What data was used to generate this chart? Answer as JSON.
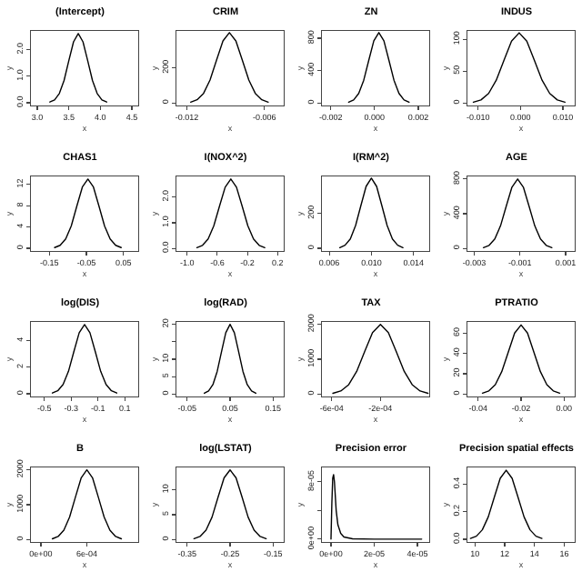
{
  "chart_data": [
    {
      "type": "line",
      "title": "(Intercept)",
      "xlabel": "x",
      "ylabel": "y",
      "color": "#000000",
      "x": [
        3.2,
        3.275,
        3.35,
        3.425,
        3.5,
        3.575,
        3.65,
        3.725,
        3.8,
        3.875,
        3.95,
        4.025,
        4.1
      ],
      "values": [
        0.03,
        0.11,
        0.35,
        0.84,
        1.58,
        2.29,
        2.6,
        2.29,
        1.58,
        0.84,
        0.35,
        0.11,
        0.03
      ],
      "xlim": [
        2.9,
        4.6
      ],
      "xticks": [
        {
          "value": 3,
          "label": "3.0"
        },
        {
          "value": 3.5,
          "label": "3.5"
        },
        {
          "value": 4,
          "label": "4.0"
        },
        {
          "value": 4.5,
          "label": "4.5"
        }
      ],
      "ylim": [
        -0.1,
        2.7
      ],
      "yticks": [
        {
          "value": 0,
          "label": "0.0"
        },
        {
          "value": 1,
          "label": "1.0"
        },
        {
          "value": 2,
          "label": "2.0"
        }
      ]
    },
    {
      "type": "line",
      "title": "CRIM",
      "xlabel": "x",
      "ylabel": "y",
      "color": "#000000",
      "x": [
        -0.0117,
        -0.0112,
        -0.0107,
        -0.0102,
        -0.0097,
        -0.0092,
        -0.0087,
        -0.0082,
        -0.0077,
        -0.0072,
        -0.0067,
        -0.0062,
        -0.0057
      ],
      "values": [
        4,
        18,
        54,
        130,
        243,
        353,
        400,
        353,
        243,
        130,
        54,
        18,
        4
      ],
      "xlim": [
        -0.0128,
        -0.0045
      ],
      "xticks": [
        -0.012,
        -0.006
      ],
      "ylim": [
        -15,
        410
      ],
      "yticks": [
        0,
        200
      ]
    },
    {
      "type": "line",
      "title": "ZN",
      "xlabel": "x",
      "ylabel": "y",
      "color": "#000000",
      "x": [
        -0.00118,
        -0.00095,
        -0.00072,
        -0.00049,
        -0.00026,
        -3e-05,
        0.0002,
        0.00043,
        0.00066,
        0.00089,
        0.00112,
        0.00135,
        0.00158
      ],
      "values": [
        10,
        38,
        118,
        282,
        528,
        768,
        870,
        768,
        528,
        282,
        118,
        38,
        10
      ],
      "xlim": [
        -0.0024,
        0.0025
      ],
      "xticks": [
        -0.002,
        {
          "value": 0,
          "label": "0.000"
        },
        0.002
      ],
      "ylim": [
        -30,
        890
      ],
      "yticks": [
        0,
        400,
        800
      ]
    },
    {
      "type": "line",
      "title": "INDUS",
      "xlabel": "x",
      "ylabel": "y",
      "color": "#000000",
      "x": [
        -0.0111,
        -0.0093,
        -0.0075,
        -0.0057,
        -0.0039,
        -0.0021,
        -0.0003,
        0.0015,
        0.0033,
        0.0051,
        0.0069,
        0.0087,
        0.0105
      ],
      "values": [
        1.2,
        4.8,
        14.9,
        35.7,
        66.7,
        97,
        110,
        97,
        66.7,
        35.7,
        14.9,
        4.8,
        1.2
      ],
      "xlim": [
        -0.0125,
        0.0128
      ],
      "xticks": [
        {
          "value": -0.01,
          "label": "-0.010"
        },
        {
          "value": 0,
          "label": "0.000"
        },
        {
          "value": 0.01,
          "label": "0.010"
        }
      ],
      "ylim": [
        -4,
        113
      ],
      "yticks": [
        0,
        50,
        100
      ]
    },
    {
      "type": "line",
      "title": "CHAS1",
      "xlabel": "x",
      "ylabel": "y",
      "color": "#000000",
      "x": [
        -0.136,
        -0.121,
        -0.106,
        -0.091,
        -0.076,
        -0.061,
        -0.046,
        -0.031,
        -0.016,
        -0.001,
        0.014,
        0.029,
        0.044
      ],
      "values": [
        0.14,
        0.57,
        1.76,
        4.2,
        7.9,
        11.5,
        13,
        11.5,
        7.9,
        4.2,
        1.76,
        0.57,
        0.14
      ],
      "xlim": [
        -0.2,
        0.09
      ],
      "xticks": [
        -0.15,
        -0.05,
        0.05
      ],
      "ylim": [
        -0.5,
        13.5
      ],
      "yticks": [
        0,
        4,
        8,
        12
      ]
    },
    {
      "type": "line",
      "title": "I(NOX^2)",
      "xlabel": "x",
      "ylabel": "y",
      "color": "#000000",
      "x": [
        -0.87,
        -0.795,
        -0.72,
        -0.645,
        -0.57,
        -0.495,
        -0.42,
        -0.345,
        -0.27,
        -0.195,
        -0.12,
        -0.045,
        0.03
      ],
      "values": [
        0.03,
        0.12,
        0.37,
        0.88,
        1.64,
        2.38,
        2.7,
        2.38,
        1.64,
        0.88,
        0.37,
        0.12,
        0.03
      ],
      "xlim": [
        -1.14,
        0.28
      ],
      "xticks": [
        {
          "value": -1,
          "label": "-1.0"
        },
        -0.6,
        -0.2,
        0.2
      ],
      "ylim": [
        -0.1,
        2.8
      ],
      "yticks": [
        {
          "value": 0,
          "label": "0.0"
        },
        {
          "value": 1,
          "label": "1.0"
        },
        {
          "value": 2,
          "label": "2.0"
        }
      ]
    },
    {
      "type": "line",
      "title": "I(RM^2)",
      "xlabel": "x",
      "ylabel": "y",
      "color": "#000000",
      "x": [
        0.007,
        0.0075,
        0.008,
        0.0085,
        0.009,
        0.0095,
        0.01,
        0.0105,
        0.011,
        0.0115,
        0.012,
        0.0125,
        0.013
      ],
      "values": [
        4,
        18,
        54,
        130,
        243,
        353,
        400,
        353,
        243,
        130,
        54,
        18,
        4
      ],
      "xlim": [
        0.0053,
        0.0155
      ],
      "xticks": [
        0.006,
        {
          "value": 0.01,
          "label": "0.010"
        },
        0.014
      ],
      "ylim": [
        -15,
        410
      ],
      "yticks": [
        0,
        200
      ]
    },
    {
      "type": "line",
      "title": "AGE",
      "xlabel": "x",
      "ylabel": "y",
      "color": "#000000",
      "x": [
        -0.0026,
        -0.00235,
        -0.0021,
        -0.00185,
        -0.0016,
        -0.00135,
        -0.0011,
        -0.00085,
        -0.0006,
        -0.00035,
        -0.0001,
        0.00015,
        0.0004
      ],
      "values": [
        9,
        35,
        108,
        260,
        486,
        706,
        800,
        706,
        486,
        260,
        108,
        35,
        9
      ],
      "xlim": [
        -0.0033,
        0.0014
      ],
      "xticks": [
        -0.003,
        -0.001,
        0.001
      ],
      "ylim": [
        -30,
        830
      ],
      "yticks": [
        0,
        400,
        800
      ]
    },
    {
      "type": "line",
      "title": "log(DIS)",
      "xlabel": "x",
      "ylabel": "y",
      "color": "#000000",
      "x": [
        -0.44,
        -0.4,
        -0.36,
        -0.32,
        -0.28,
        -0.24,
        -0.2,
        -0.16,
        -0.12,
        -0.08,
        -0.04,
        0,
        0.04
      ],
      "values": [
        0.06,
        0.23,
        0.7,
        1.69,
        3.16,
        4.59,
        5.2,
        4.59,
        3.16,
        1.69,
        0.7,
        0.23,
        0.06
      ],
      "xlim": [
        -0.6,
        0.2
      ],
      "xticks": [
        -0.5,
        -0.3,
        -0.1,
        0.1
      ],
      "ylim": [
        -0.2,
        5.4
      ],
      "yticks": [
        0,
        2,
        4
      ]
    },
    {
      "type": "line",
      "title": "log(RAD)",
      "xlabel": "x",
      "ylabel": "y",
      "color": "#000000",
      "x": [
        -0.01,
        0,
        0.01,
        0.02,
        0.03,
        0.04,
        0.05,
        0.06,
        0.07,
        0.08,
        0.09,
        0.1,
        0.11
      ],
      "values": [
        0.22,
        0.88,
        2.7,
        6.5,
        12.1,
        17.6,
        20,
        17.6,
        12.1,
        6.5,
        2.7,
        0.88,
        0.22
      ],
      "xlim": [
        -0.075,
        0.175
      ],
      "xticks": [
        -0.05,
        0.05,
        0.15
      ],
      "ylim": [
        -0.7,
        20.7
      ],
      "yticks": [
        0,
        5,
        10,
        {
          "value": 15,
          "label": null
        },
        20
      ]
    },
    {
      "type": "line",
      "title": "TAX",
      "xlabel": "x",
      "ylabel": "y",
      "color": "#000000",
      "x": [
        -0.00059,
        -0.000525,
        -0.00046,
        -0.000395,
        -0.00033,
        -0.000265,
        -0.0002,
        -0.000135,
        -7e-05,
        -5e-06,
        6e-05,
        0.000125,
        0.00019
      ],
      "values": [
        22,
        88,
        270,
        649,
        1213,
        1765,
        2000,
        1765,
        1213,
        649,
        270,
        88,
        22
      ],
      "xlim": [
        -0.00068,
        0.0002
      ],
      "xticks": [
        {
          "value": -0.0006,
          "label": "-6e-04"
        },
        {
          "value": -0.0002,
          "label": "-2e-04"
        }
      ],
      "ylim": [
        -70,
        2070
      ],
      "yticks": [
        0,
        1000,
        2000
      ]
    },
    {
      "type": "line",
      "title": "PTRATIO",
      "xlabel": "x",
      "ylabel": "y",
      "color": "#000000",
      "x": [
        -0.038,
        -0.035,
        -0.032,
        -0.029,
        -0.026,
        -0.023,
        -0.02,
        -0.017,
        -0.014,
        -0.011,
        -0.008,
        -0.005,
        -0.002
      ],
      "values": [
        0.75,
        3,
        9.2,
        22,
        41,
        60,
        68,
        60,
        41,
        22,
        9.2,
        3,
        0.75
      ],
      "xlim": [
        -0.045,
        0.005
      ],
      "xticks": [
        -0.04,
        -0.02,
        {
          "value": 0,
          "label": "0.00"
        }
      ],
      "ylim": [
        -2.5,
        71
      ],
      "yticks": [
        0,
        20,
        40,
        60
      ]
    },
    {
      "type": "line",
      "title": "B",
      "xlabel": "x",
      "ylabel": "y",
      "color": "#000000",
      "x": [
        0.00015,
        0.000225,
        0.0003,
        0.000375,
        0.00045,
        0.000525,
        0.0006,
        0.000675,
        0.00075,
        0.000825,
        0.0009,
        0.000975,
        0.00105
      ],
      "values": [
        22,
        88,
        270,
        649,
        1213,
        1765,
        2000,
        1765,
        1213,
        649,
        270,
        88,
        22
      ],
      "xlim": [
        -0.00013,
        0.00127
      ],
      "xticks": [
        {
          "value": 0,
          "label": "0e+00"
        },
        {
          "value": 0.0006,
          "label": "6e-04"
        }
      ],
      "ylim": [
        -70,
        2070
      ],
      "yticks": [
        0,
        1000,
        2000
      ]
    },
    {
      "type": "line",
      "title": "log(LSTAT)",
      "xlabel": "x",
      "ylabel": "y",
      "color": "#000000",
      "x": [
        -0.334,
        -0.32,
        -0.306,
        -0.292,
        -0.278,
        -0.264,
        -0.25,
        -0.236,
        -0.222,
        -0.208,
        -0.194,
        -0.18,
        -0.166
      ],
      "values": [
        0.16,
        0.61,
        1.89,
        4.5,
        8.5,
        12.4,
        14,
        12.4,
        8.5,
        4.5,
        1.89,
        0.61,
        0.16
      ],
      "xlim": [
        -0.375,
        -0.125
      ],
      "xticks": [
        -0.35,
        -0.25,
        -0.15
      ],
      "ylim": [
        -0.5,
        14.5
      ],
      "yticks": [
        0,
        5,
        10
      ]
    },
    {
      "type": "line",
      "title": "Precision error",
      "xlabel": "x",
      "ylabel": "y",
      "color": "#000000",
      "x": [
        0,
        4e-07,
        8e-07,
        1.2e-06,
        1.6e-06,
        2.4e-06,
        3.2e-06,
        4.5e-06,
        6e-06,
        1e-05,
        2e-05,
        4.2e-05
      ],
      "values": [
        0,
        5e-05,
        8.5e-05,
        9e-05,
        8e-05,
        4e-05,
        2e-05,
        8e-06,
        3e-06,
        5e-07,
        0,
        0
      ],
      "xlim": [
        -4.2e-06,
        4.55e-05
      ],
      "xticks": [
        {
          "value": 0,
          "label": "0e+00"
        },
        {
          "value": 2e-05,
          "label": "2e-05"
        },
        {
          "value": 4e-05,
          "label": "4e-05"
        }
      ],
      "ylim": [
        -4e-06,
        0.0001
      ],
      "yticks": [
        {
          "value": 0,
          "label": "0e+00"
        },
        {
          "value": 4e-05,
          "label": null
        },
        {
          "value": 8e-05,
          "label": "8e-05"
        }
      ]
    },
    {
      "type": "line",
      "title": "Precision spatial effects",
      "xlabel": "x",
      "ylabel": "y",
      "color": "#000000",
      "x": [
        9.7,
        10.1,
        10.5,
        10.9,
        11.3,
        11.7,
        12.1,
        12.5,
        12.9,
        13.3,
        13.7,
        14.1,
        14.5
      ],
      "values": [
        0.006,
        0.022,
        0.068,
        0.162,
        0.303,
        0.441,
        0.5,
        0.441,
        0.303,
        0.162,
        0.068,
        0.022,
        0.006
      ],
      "xlim": [
        9.5,
        16.7
      ],
      "xticks": [
        10,
        12,
        14,
        16
      ],
      "ylim": [
        -0.02,
        0.52
      ],
      "yticks": [
        {
          "value": 0,
          "label": "0.0"
        },
        {
          "value": 0.2,
          "label": "0.2"
        },
        {
          "value": 0.4,
          "label": "0.4"
        }
      ]
    }
  ]
}
